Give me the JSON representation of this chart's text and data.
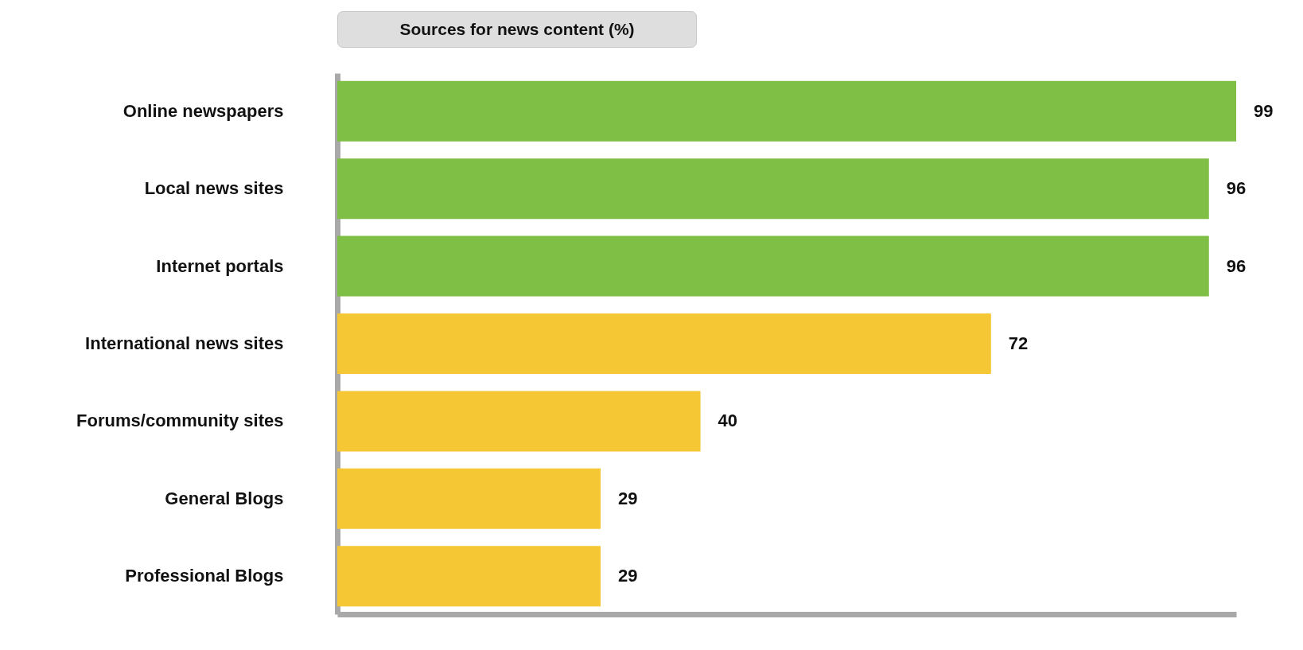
{
  "chart_data": {
    "type": "bar",
    "orientation": "horizontal",
    "title": "Sources for news content (%)",
    "categories": [
      "Online newspapers",
      "Local news sites",
      "Internet portals",
      "International news sites",
      "Forums/community sites",
      "General Blogs",
      "Professional Blogs"
    ],
    "values": [
      99,
      96,
      96,
      72,
      40,
      29,
      29
    ],
    "colors": [
      "#7fbf45",
      "#7fbf45",
      "#7fbf45",
      "#f5c735",
      "#f5c735",
      "#f5c735",
      "#f5c735"
    ],
    "data_labels": true,
    "tick_labels": "y",
    "grid": false
  }
}
